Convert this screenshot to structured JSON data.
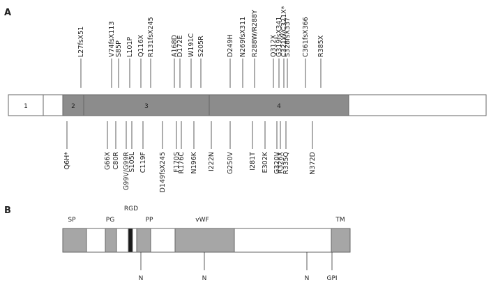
{
  "panelA": {
    "label": "A",
    "exons": [
      {
        "label": "1",
        "fill": "#ffffff"
      },
      {
        "label": "",
        "fill": "#ffffff"
      },
      {
        "label": "2",
        "fill": "#8c8c8c"
      },
      {
        "label": "3",
        "fill": "#8c8c8c"
      },
      {
        "label": "4",
        "fill": "#8c8c8c"
      },
      {
        "label": "",
        "fill": "#ffffff"
      }
    ],
    "mutations_above": [
      "L27fsX51",
      "V74fsX113",
      "S85P",
      "L101P",
      "Q116X",
      "R131fsX245",
      "A168D",
      "D172E",
      "W191C",
      "S205R",
      "D249H",
      "N269fsX311",
      "R288W/R288Y",
      "Q312X",
      "G319fsX341",
      "C321W/C321X*",
      "S328fsX337",
      "C361fsX366",
      "R385X"
    ],
    "mutations_below": [
      "Q6H*",
      "G66X",
      "C80R",
      "G99V/G99R",
      "S105L",
      "C119F",
      "D149fsX245",
      "F170S",
      "R176C",
      "N196K",
      "I222N",
      "G250V",
      "I281T",
      "E302K",
      "G320V",
      "R326X",
      "R335Q",
      "N372D"
    ]
  },
  "panelB": {
    "label": "B",
    "domains": [
      {
        "label": "SP"
      },
      {
        "label": "PG"
      },
      {
        "label": "RGD"
      },
      {
        "label": "PP"
      },
      {
        "label": "vWF"
      },
      {
        "label": "TM"
      }
    ],
    "sites": [
      "N",
      "N",
      "N",
      "GPI"
    ],
    "colors": {
      "domain": "#a6a6a6",
      "rgd": "#1a1a1a",
      "outline": "#666666"
    }
  }
}
